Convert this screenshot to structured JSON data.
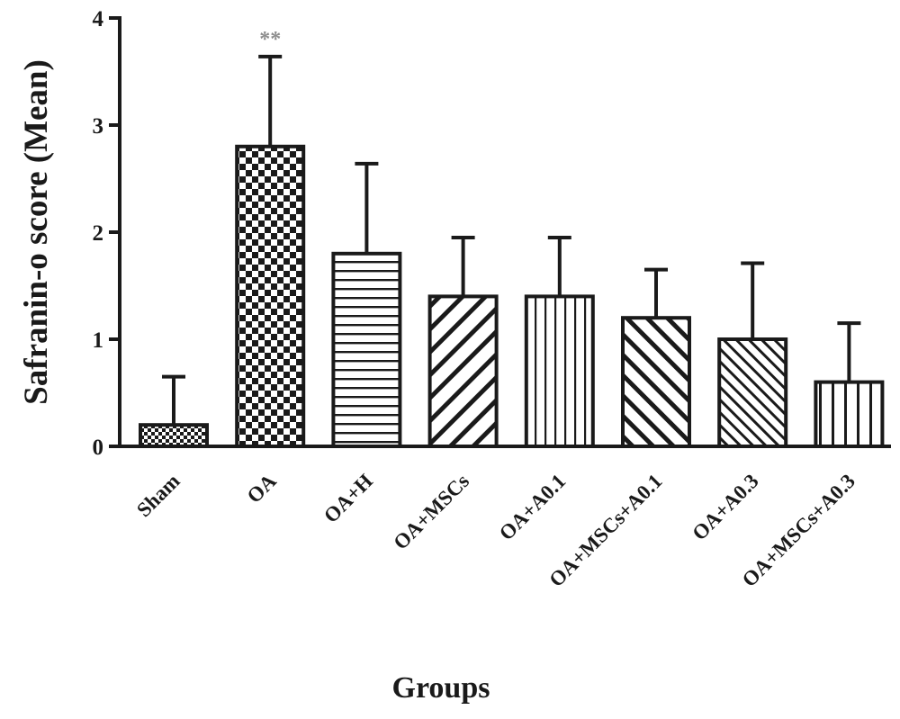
{
  "chart_data": {
    "type": "bar",
    "title": "",
    "xlabel": "Groups",
    "ylabel": "Safranin-o score (Mean)",
    "ylim": [
      0,
      4
    ],
    "yticks": [
      "0",
      "1",
      "2",
      "3",
      "4"
    ],
    "ytick_values": [
      0,
      1,
      2,
      3,
      4
    ],
    "categories": [
      "Sham",
      "OA",
      "OA+H",
      "OA+MSCs",
      "OA+A0.1",
      "OA+MSCs+A0.1",
      "OA+A0.3",
      "OA+MSCs+A0.3"
    ],
    "values": [
      0.2,
      2.8,
      1.8,
      1.4,
      1.4,
      1.2,
      1.0,
      0.6
    ],
    "error_upper": [
      0.65,
      3.64,
      2.64,
      1.95,
      1.95,
      1.65,
      1.71,
      1.15
    ],
    "patterns": [
      "fine-checker",
      "checker",
      "horizontal-lines",
      "diagonal-backslash",
      "vertical-lines",
      "diagonal-slash",
      "fine-diagonal-slash",
      "wide-vertical-lines"
    ],
    "annotations": [
      {
        "category": "OA",
        "text": "**"
      }
    ],
    "grid": false,
    "legend": "none"
  }
}
